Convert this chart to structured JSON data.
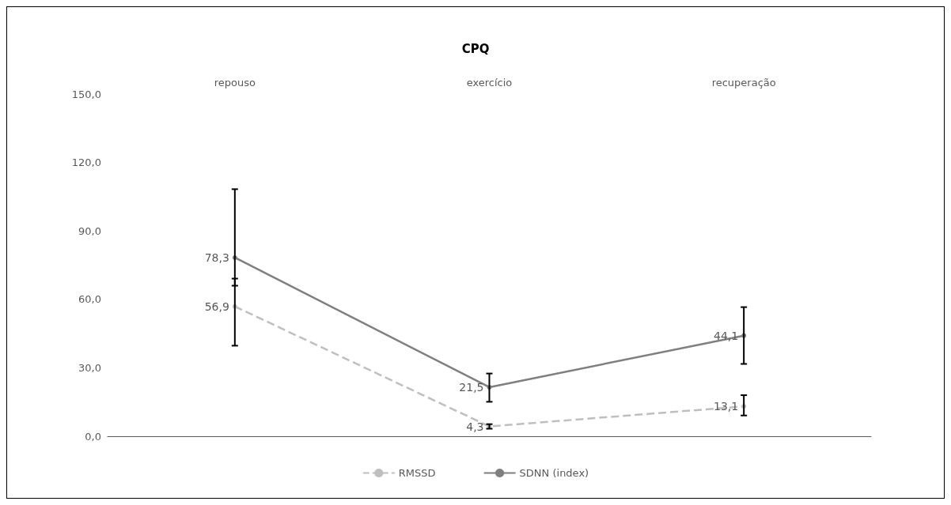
{
  "chart_data": {
    "type": "line",
    "title": "CPQ",
    "categories": [
      "repouso",
      "exercício",
      "recuperação"
    ],
    "ylim": [
      0,
      150
    ],
    "yticks": [
      {
        "value": 0,
        "label": "0,0"
      },
      {
        "value": 30,
        "label": "30,0"
      },
      {
        "value": 60,
        "label": "60,0"
      },
      {
        "value": 90,
        "label": "90,0"
      },
      {
        "value": 120,
        "label": "120,0"
      },
      {
        "value": 150,
        "label": "150,0"
      }
    ],
    "series": [
      {
        "name": "RMSSD",
        "color": "#bfbfbf",
        "line_style": "dashed",
        "values": [
          56.9,
          4.3,
          13.1
        ],
        "value_labels": [
          "56,9",
          "4,3",
          "13,1"
        ],
        "errors": [
          [
            39.7,
            69.1
          ],
          [
            3.3,
            5.3
          ],
          [
            9.1,
            18.0
          ]
        ]
      },
      {
        "name": "SDNN (index)",
        "color": "#7f7f7f",
        "line_style": "solid",
        "values": [
          78.3,
          21.5,
          44.1
        ],
        "value_labels": [
          "78,3",
          "21,5",
          "44,1"
        ],
        "errors": [
          [
            66.0,
            108.3
          ],
          [
            15.1,
            27.5
          ],
          [
            31.7,
            56.6
          ]
        ]
      }
    ],
    "marker": "circle",
    "grid": false,
    "legend": "bottom"
  }
}
